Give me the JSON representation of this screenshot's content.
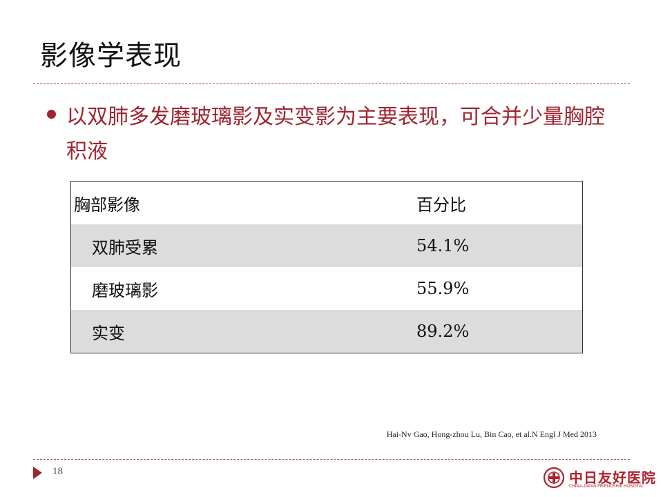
{
  "slide": {
    "title": "影像学表现",
    "bullet": "以双肺多发磨玻璃影及实变影为主要表现，可合并少量胸腔积液",
    "page_number": "18"
  },
  "table": {
    "headers": [
      "胸部影像",
      "百分比"
    ],
    "rows": [
      [
        "双肺受累",
        "54.1%"
      ],
      [
        "磨玻璃影",
        "55.9%"
      ],
      [
        "实变",
        "89.2%"
      ]
    ]
  },
  "citation": "Hai-Nv Gao, Hong-zhou Lu, Bin Cao, et al.N Engl J Med 2013",
  "logo": {
    "name": "中日友好医院",
    "subtitle": "CHINA-JAPAN FRIENDSHIP HOSPITAL"
  },
  "colors": {
    "accent": "#a0242f",
    "row_shade": "#dcdcdc"
  },
  "icons": {
    "bullet": "circle-bullet-icon",
    "page_marker": "triangle-right-icon",
    "logo_mark": "hospital-emblem-icon"
  }
}
